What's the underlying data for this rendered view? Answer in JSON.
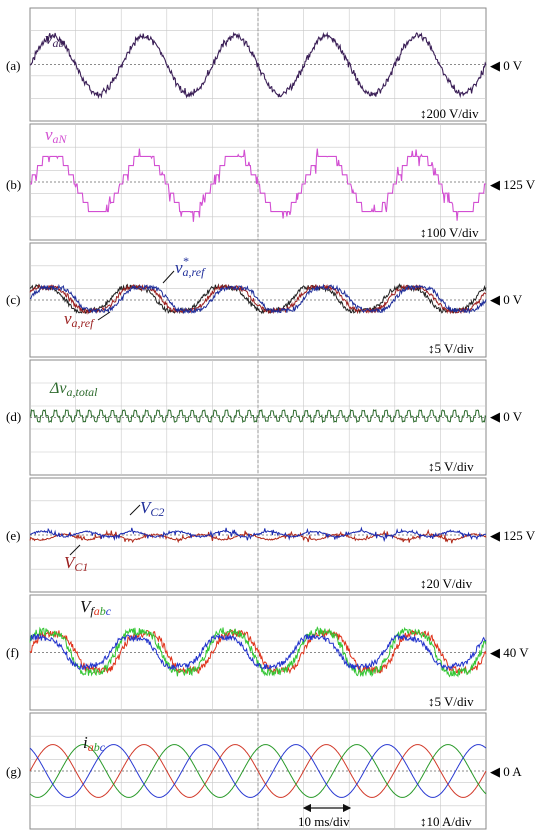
{
  "chart_data": [
    {
      "panel": "(a)",
      "type": "line",
      "signal_label": "v",
      "signal_sub": "ab",
      "offset_label": "◀ 0 V",
      "scale_label": "200 V/div",
      "series": [
        {
          "label": "v_ab",
          "color": "#3a1e56",
          "shape": "staircase-sine",
          "cycles": 5,
          "amplitude_div": 1.3
        }
      ]
    },
    {
      "panel": "(b)",
      "type": "line",
      "signal_label": "v",
      "signal_sub": "aN",
      "offset_label": "◀ 125 V",
      "scale_label": "100 V/div",
      "series": [
        {
          "label": "v_aN",
          "color": "#d24fd2",
          "shape": "multilevel-stepped",
          "cycles": 5,
          "amplitude_div": 1.3
        }
      ]
    },
    {
      "panel": "(c)",
      "type": "line",
      "offset_label": "◀ 0 V",
      "scale_label": "5 V/div",
      "annotations": [
        {
          "text": "v",
          "sub": "a,ref",
          "sup": "*",
          "color": "#1f2e9a"
        },
        {
          "text": "v",
          "sub": "a,ref",
          "color": "#9b2020"
        }
      ],
      "series": [
        {
          "label": "v*_a,ref",
          "color": "#1f2e9a",
          "shape": "noisy-sine",
          "cycles": 5,
          "amplitude_div": 0.6
        },
        {
          "label": "v_a,ref",
          "color": "#9b2020",
          "shape": "noisy-sine",
          "cycles": 5,
          "amplitude_div": 0.6
        },
        {
          "label": "",
          "color": "#222222",
          "shape": "noisy-sine",
          "cycles": 5,
          "amplitude_div": 0.6
        }
      ]
    },
    {
      "panel": "(d)",
      "type": "line",
      "signal_label": "Δv",
      "signal_sub": "a,total",
      "offset_label": "◀ 0 V",
      "scale_label": "5 V/div",
      "series": [
        {
          "label": "Δv_a,total",
          "color": "#2e6b2e",
          "shape": "small-pulses",
          "amplitude_div": 0.2
        }
      ]
    },
    {
      "panel": "(e)",
      "type": "line",
      "offset_label": "◀ 125 V",
      "scale_label": "20 V/div",
      "annotations": [
        {
          "text": "V",
          "sub": "C2",
          "color": "#1f2e9a"
        },
        {
          "text": "V",
          "sub": "C1",
          "color": "#9b2020"
        }
      ],
      "series": [
        {
          "label": "V_C2",
          "color": "#1a2ab0",
          "shape": "ripple",
          "amplitude_div": 0.15
        },
        {
          "label": "V_C1",
          "color": "#b02a1a",
          "shape": "ripple",
          "amplitude_div": 0.15
        }
      ]
    },
    {
      "panel": "(f)",
      "type": "line",
      "signal_label": "V",
      "signal_sub_parts": [
        "f",
        "a",
        "b",
        "c"
      ],
      "offset_label": "◀ 40 V",
      "scale_label": "5 V/div",
      "series": [
        {
          "label": "V_fa",
          "color": "#e0341c",
          "shape": "noisy-sine",
          "cycles": 5,
          "amplitude_div": 0.9
        },
        {
          "label": "V_fb",
          "color": "#34c634",
          "shape": "noisy-sine",
          "cycles": 5,
          "amplitude_div": 1.0
        },
        {
          "label": "V_fc",
          "color": "#2233cc",
          "shape": "noisy-sine",
          "cycles": 5,
          "amplitude_div": 0.7
        }
      ]
    },
    {
      "panel": "(g)",
      "type": "line",
      "signal_label": "i",
      "signal_sub_parts": [
        "a",
        "b",
        "c"
      ],
      "offset_label": "◀ 0 A",
      "scale_label": "10 A/div",
      "time_label": "10 ms/div",
      "series": [
        {
          "label": "i_a",
          "color": "#d23a2a",
          "shape": "sine",
          "cycles": 5,
          "amplitude_div": 1.2,
          "phase_deg": 0
        },
        {
          "label": "i_b",
          "color": "#2a9a2a",
          "shape": "sine",
          "cycles": 5,
          "amplitude_div": 1.2,
          "phase_deg": -120
        },
        {
          "label": "i_c",
          "color": "#2a3ad2",
          "shape": "sine",
          "cycles": 5,
          "amplitude_div": 1.2,
          "phase_deg": 120
        }
      ]
    }
  ],
  "colors": {
    "grid": "#c8c8c8",
    "frame": "#8a8a8a",
    "zero_line": "#666666",
    "center_line": "#888888",
    "sub_a": "#e0341c",
    "sub_b": "#2a9a2a",
    "sub_c": "#2233cc"
  }
}
